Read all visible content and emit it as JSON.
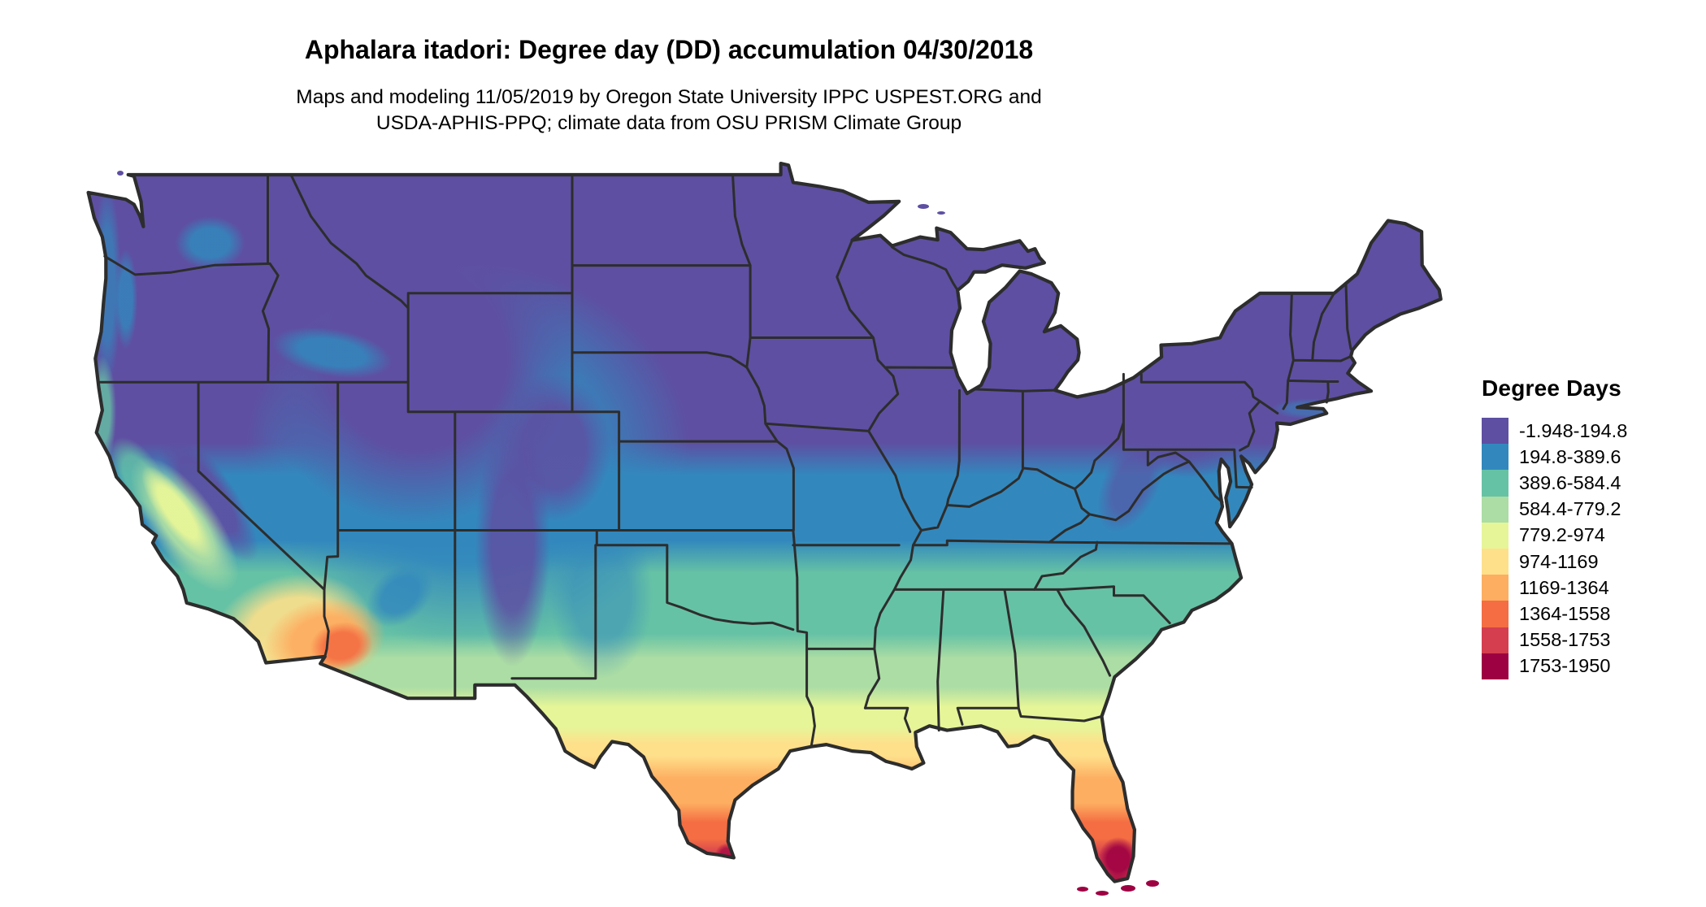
{
  "title": "Aphalara itadori: Degree day (DD) accumulation 04/30/2018",
  "subtitle": {
    "line1": "Maps and modeling 11/05/2019 by Oregon State University IPPC USPEST.ORG and",
    "line2": "USDA-APHIS-PPQ; climate data from OSU PRISM Climate Group"
  },
  "legend": {
    "title": "Degree Days",
    "items": [
      {
        "label": "-1.948-194.8",
        "color": "#5e4fa2"
      },
      {
        "label": "194.8-389.6",
        "color": "#3288bd"
      },
      {
        "label": "389.6-584.4",
        "color": "#66c2a5"
      },
      {
        "label": "584.4-779.2",
        "color": "#abdda4"
      },
      {
        "label": "779.2-974",
        "color": "#e6f598"
      },
      {
        "label": "974-1169",
        "color": "#fee08b"
      },
      {
        "label": "1169-1364",
        "color": "#fdae61"
      },
      {
        "label": "1364-1558",
        "color": "#f46d43"
      },
      {
        "label": "1558-1753",
        "color": "#d53e4f"
      },
      {
        "label": "1753-1950",
        "color": "#9e0142"
      }
    ]
  },
  "map": {
    "region": "Continental United States",
    "variable": "Degree day (DD) accumulation through 04/30/2018",
    "border_color": "#2d2d2d",
    "background_color": "#ffffff"
  },
  "chart_data": {
    "type": "heatmap",
    "title": "Aphalara itadori: Degree day (DD) accumulation 04/30/2018",
    "legend_title": "Degree Days",
    "legend_position": "right",
    "bins": [
      {
        "from": -1.948,
        "to": 194.8,
        "color": "#5e4fa2"
      },
      {
        "from": 194.8,
        "to": 389.6,
        "color": "#3288bd"
      },
      {
        "from": 389.6,
        "to": 584.4,
        "color": "#66c2a5"
      },
      {
        "from": 584.4,
        "to": 779.2,
        "color": "#abdda4"
      },
      {
        "from": 779.2,
        "to": 974,
        "color": "#e6f598"
      },
      {
        "from": 974,
        "to": 1169,
        "color": "#fee08b"
      },
      {
        "from": 1169,
        "to": 1364,
        "color": "#fdae61"
      },
      {
        "from": 1364,
        "to": 1558,
        "color": "#f46d43"
      },
      {
        "from": 1558,
        "to": 1753,
        "color": "#d53e4f"
      },
      {
        "from": 1753,
        "to": 1950,
        "color": "#9e0142"
      }
    ],
    "notes": "Degree days accumulate from low values (purple) in the northern US and high mountains to ~1950 (dark red) in south Florida and south Texas."
  }
}
